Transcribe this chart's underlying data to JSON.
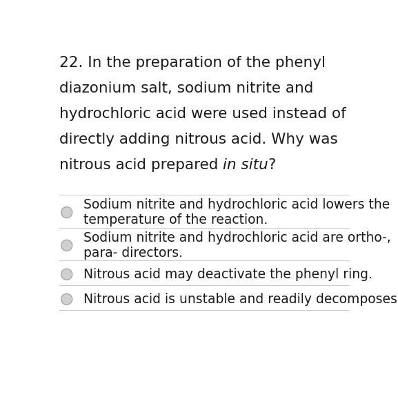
{
  "question_lines": [
    "22. In the preparation of the phenyl",
    "diazonium salt, sodium nitrite and",
    "hydrochloric acid were used instead of",
    "directly adding nitrous acid. Why was",
    "nitrous acid prepared "
  ],
  "italic_part": "in situ",
  "question_end": "?",
  "options": [
    [
      "Sodium nitrite and hydrochloric acid lowers the",
      "temperature of the reaction."
    ],
    [
      "Sodium nitrite and hydrochloric acid are ortho-,",
      "para- directors."
    ],
    [
      "Nitrous acid may deactivate the phenyl ring."
    ],
    [
      "Nitrous acid is unstable and readily decomposes."
    ]
  ],
  "background_color": "#ffffff",
  "text_color": "#1a1a1a",
  "circle_fill": "#d0d0d0",
  "circle_edge": "#a8a8a8",
  "separator_color": "#cccccc",
  "question_fontsize": 15.5,
  "option_fontsize": 13.5,
  "figwidth": 5.77,
  "figheight": 5.85
}
